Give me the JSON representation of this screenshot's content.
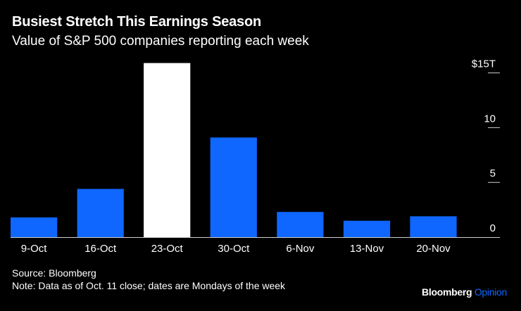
{
  "chart_data": {
    "type": "bar",
    "title": "Busiest Stretch This Earnings Season",
    "subtitle": "Value of S&P 500 companies reporting each week",
    "categories": [
      "9-Oct",
      "16-Oct",
      "23-Oct",
      "30-Oct",
      "6-Nov",
      "13-Nov",
      "20-Nov"
    ],
    "values": [
      1.8,
      4.4,
      15.9,
      9.1,
      2.3,
      1.5,
      1.9
    ],
    "highlight_index": 2,
    "y_ticks": [
      0,
      5,
      10,
      15
    ],
    "y_tick_labels": [
      "0",
      "5",
      "10",
      "$15T"
    ],
    "ylim": [
      0,
      16
    ],
    "xlabel": "",
    "ylabel": "",
    "axis_position": "right",
    "grid": false,
    "colors": {
      "bar": "#0f67ff",
      "highlight": "#ffffff",
      "background": "#000000",
      "text": "#ffffff"
    }
  },
  "footer": {
    "source": "Source: Bloomberg",
    "note": "Note: Data as of Oct. 11 close; dates are Mondays of the week"
  },
  "brand": {
    "name": "Bloomberg",
    "section": "Opinion",
    "section_color": "#0f67ff"
  }
}
